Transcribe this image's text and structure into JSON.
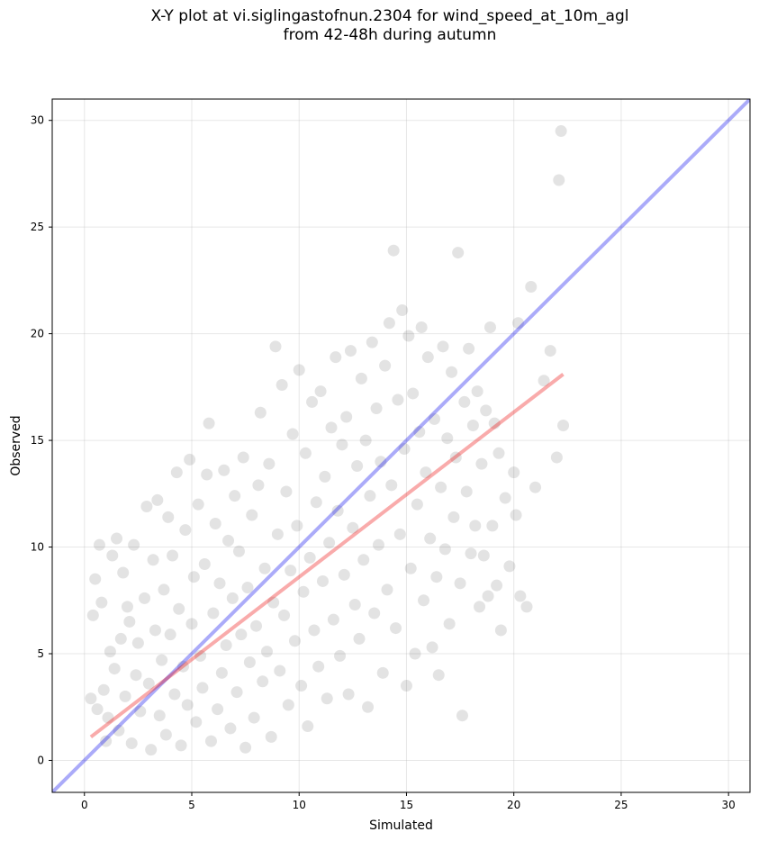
{
  "chart_data": {
    "type": "scatter",
    "title": "X-Y plot at vi.siglingastofnun.2304 for wind_speed_at_10m_agl",
    "subtitle": "from 42-48h during autumn",
    "xlabel": "Simulated",
    "ylabel": "Observed",
    "xlim": [
      -1.5,
      31
    ],
    "ylim": [
      -1.5,
      31
    ],
    "xticks": [
      0,
      5,
      10,
      15,
      20,
      25,
      30
    ],
    "yticks": [
      0,
      5,
      10,
      15,
      20,
      25,
      30
    ],
    "grid": true,
    "point_color": "#404040",
    "point_alpha": 0.15,
    "series": [
      {
        "type": "scatter",
        "points": [
          [
            0.3,
            2.9
          ],
          [
            0.4,
            6.8
          ],
          [
            0.5,
            8.5
          ],
          [
            0.6,
            2.4
          ],
          [
            0.7,
            10.1
          ],
          [
            0.8,
            7.4
          ],
          [
            0.9,
            3.3
          ],
          [
            1.0,
            0.9
          ],
          [
            1.1,
            2.0
          ],
          [
            1.2,
            5.1
          ],
          [
            1.3,
            9.6
          ],
          [
            1.4,
            4.3
          ],
          [
            1.5,
            10.4
          ],
          [
            1.6,
            1.4
          ],
          [
            1.7,
            5.7
          ],
          [
            1.8,
            8.8
          ],
          [
            1.9,
            3.0
          ],
          [
            2.0,
            7.2
          ],
          [
            2.1,
            6.5
          ],
          [
            2.2,
            0.8
          ],
          [
            2.3,
            10.1
          ],
          [
            2.4,
            4.0
          ],
          [
            2.5,
            5.5
          ],
          [
            2.6,
            2.3
          ],
          [
            2.8,
            7.6
          ],
          [
            2.9,
            11.9
          ],
          [
            3.0,
            3.6
          ],
          [
            3.1,
            0.5
          ],
          [
            3.2,
            9.4
          ],
          [
            3.3,
            6.1
          ],
          [
            3.4,
            12.2
          ],
          [
            3.5,
            2.1
          ],
          [
            3.6,
            4.7
          ],
          [
            3.7,
            8.0
          ],
          [
            3.8,
            1.2
          ],
          [
            3.9,
            11.4
          ],
          [
            4.0,
            5.9
          ],
          [
            4.1,
            9.6
          ],
          [
            4.2,
            3.1
          ],
          [
            4.3,
            13.5
          ],
          [
            4.4,
            7.1
          ],
          [
            4.5,
            0.7
          ],
          [
            4.6,
            4.4
          ],
          [
            4.7,
            10.8
          ],
          [
            4.8,
            2.6
          ],
          [
            4.9,
            14.1
          ],
          [
            5.0,
            6.4
          ],
          [
            5.1,
            8.6
          ],
          [
            5.2,
            1.8
          ],
          [
            5.3,
            12.0
          ],
          [
            5.4,
            4.9
          ],
          [
            5.5,
            3.4
          ],
          [
            5.6,
            9.2
          ],
          [
            5.7,
            13.4
          ],
          [
            5.8,
            15.8
          ],
          [
            5.9,
            0.9
          ],
          [
            6.0,
            6.9
          ],
          [
            6.1,
            11.1
          ],
          [
            6.2,
            2.4
          ],
          [
            6.3,
            8.3
          ],
          [
            6.4,
            4.1
          ],
          [
            6.5,
            13.6
          ],
          [
            6.6,
            5.4
          ],
          [
            6.7,
            10.3
          ],
          [
            6.8,
            1.5
          ],
          [
            6.9,
            7.6
          ],
          [
            7.0,
            12.4
          ],
          [
            7.1,
            3.2
          ],
          [
            7.2,
            9.8
          ],
          [
            7.3,
            5.9
          ],
          [
            7.4,
            14.2
          ],
          [
            7.5,
            0.6
          ],
          [
            7.6,
            8.1
          ],
          [
            7.7,
            4.6
          ],
          [
            7.8,
            11.5
          ],
          [
            7.9,
            2.0
          ],
          [
            8.0,
            6.3
          ],
          [
            8.1,
            12.9
          ],
          [
            8.2,
            16.3
          ],
          [
            8.3,
            3.7
          ],
          [
            8.4,
            9.0
          ],
          [
            8.5,
            5.1
          ],
          [
            8.6,
            13.9
          ],
          [
            8.7,
            1.1
          ],
          [
            8.8,
            7.4
          ],
          [
            8.9,
            19.4
          ],
          [
            9.0,
            10.6
          ],
          [
            9.1,
            4.2
          ],
          [
            9.2,
            17.6
          ],
          [
            9.3,
            6.8
          ],
          [
            9.4,
            12.6
          ],
          [
            9.5,
            2.6
          ],
          [
            9.6,
            8.9
          ],
          [
            9.7,
            15.3
          ],
          [
            9.8,
            5.6
          ],
          [
            9.9,
            11.0
          ],
          [
            10.0,
            18.3
          ],
          [
            10.1,
            3.5
          ],
          [
            10.2,
            7.9
          ],
          [
            10.3,
            14.4
          ],
          [
            10.4,
            1.6
          ],
          [
            10.5,
            9.5
          ],
          [
            10.6,
            16.8
          ],
          [
            10.7,
            6.1
          ],
          [
            10.8,
            12.1
          ],
          [
            10.9,
            4.4
          ],
          [
            11.0,
            17.3
          ],
          [
            11.1,
            8.4
          ],
          [
            11.2,
            13.3
          ],
          [
            11.3,
            2.9
          ],
          [
            11.4,
            10.2
          ],
          [
            11.5,
            15.6
          ],
          [
            11.6,
            6.6
          ],
          [
            11.7,
            18.9
          ],
          [
            11.8,
            11.7
          ],
          [
            11.9,
            4.9
          ],
          [
            12.0,
            14.8
          ],
          [
            12.1,
            8.7
          ],
          [
            12.2,
            16.1
          ],
          [
            12.3,
            3.1
          ],
          [
            12.4,
            19.2
          ],
          [
            12.5,
            10.9
          ],
          [
            12.6,
            7.3
          ],
          [
            12.7,
            13.8
          ],
          [
            12.8,
            5.7
          ],
          [
            12.9,
            17.9
          ],
          [
            13.0,
            9.4
          ],
          [
            13.1,
            15.0
          ],
          [
            13.2,
            2.5
          ],
          [
            13.3,
            12.4
          ],
          [
            13.4,
            19.6
          ],
          [
            13.5,
            6.9
          ],
          [
            13.6,
            16.5
          ],
          [
            13.7,
            10.1
          ],
          [
            13.8,
            14.0
          ],
          [
            13.9,
            4.1
          ],
          [
            14.0,
            18.5
          ],
          [
            14.1,
            8.0
          ],
          [
            14.2,
            20.5
          ],
          [
            14.3,
            12.9
          ],
          [
            14.4,
            23.9
          ],
          [
            14.5,
            6.2
          ],
          [
            14.6,
            16.9
          ],
          [
            14.7,
            10.6
          ],
          [
            14.8,
            21.1
          ],
          [
            14.9,
            14.6
          ],
          [
            15.0,
            3.5
          ],
          [
            15.1,
            19.9
          ],
          [
            15.2,
            9.0
          ],
          [
            15.3,
            17.2
          ],
          [
            15.4,
            5.0
          ],
          [
            15.5,
            12.0
          ],
          [
            15.6,
            15.4
          ],
          [
            15.7,
            20.3
          ],
          [
            15.8,
            7.5
          ],
          [
            15.9,
            13.5
          ],
          [
            16.0,
            18.9
          ],
          [
            16.1,
            10.4
          ],
          [
            16.2,
            5.3
          ],
          [
            16.3,
            16.0
          ],
          [
            16.4,
            8.6
          ],
          [
            16.5,
            4.0
          ],
          [
            16.6,
            12.8
          ],
          [
            16.7,
            19.4
          ],
          [
            16.8,
            9.9
          ],
          [
            16.9,
            15.1
          ],
          [
            17.0,
            6.4
          ],
          [
            17.1,
            18.2
          ],
          [
            17.2,
            11.4
          ],
          [
            17.3,
            14.2
          ],
          [
            17.4,
            23.8
          ],
          [
            17.5,
            8.3
          ],
          [
            17.6,
            2.1
          ],
          [
            17.7,
            16.8
          ],
          [
            17.8,
            12.6
          ],
          [
            17.9,
            19.3
          ],
          [
            18.0,
            9.7
          ],
          [
            18.1,
            15.7
          ],
          [
            18.2,
            11.0
          ],
          [
            18.3,
            17.3
          ],
          [
            18.4,
            7.2
          ],
          [
            18.5,
            13.9
          ],
          [
            18.6,
            9.6
          ],
          [
            18.7,
            16.4
          ],
          [
            18.8,
            7.7
          ],
          [
            18.9,
            20.3
          ],
          [
            19.0,
            11.0
          ],
          [
            19.1,
            15.8
          ],
          [
            19.2,
            8.2
          ],
          [
            19.3,
            14.4
          ],
          [
            19.4,
            6.1
          ],
          [
            19.6,
            12.3
          ],
          [
            19.8,
            9.1
          ],
          [
            20.0,
            13.5
          ],
          [
            20.1,
            11.5
          ],
          [
            20.2,
            20.5
          ],
          [
            20.3,
            7.7
          ],
          [
            20.6,
            7.2
          ],
          [
            20.8,
            22.2
          ],
          [
            21.0,
            12.8
          ],
          [
            21.4,
            17.8
          ],
          [
            21.7,
            19.2
          ],
          [
            22.0,
            14.2
          ],
          [
            22.1,
            27.2
          ],
          [
            22.2,
            29.5
          ],
          [
            22.3,
            15.7
          ]
        ]
      },
      {
        "type": "line",
        "name": "",
        "color": "#0000ee",
        "alpha": 0.33,
        "x": [
          -1.5,
          31
        ],
        "y": [
          -1.5,
          31
        ]
      },
      {
        "type": "line",
        "name": "",
        "color": "#ee0000",
        "alpha": 0.33,
        "x": [
          0.3,
          22.3
        ],
        "y": [
          1.1,
          18.1
        ]
      }
    ]
  }
}
